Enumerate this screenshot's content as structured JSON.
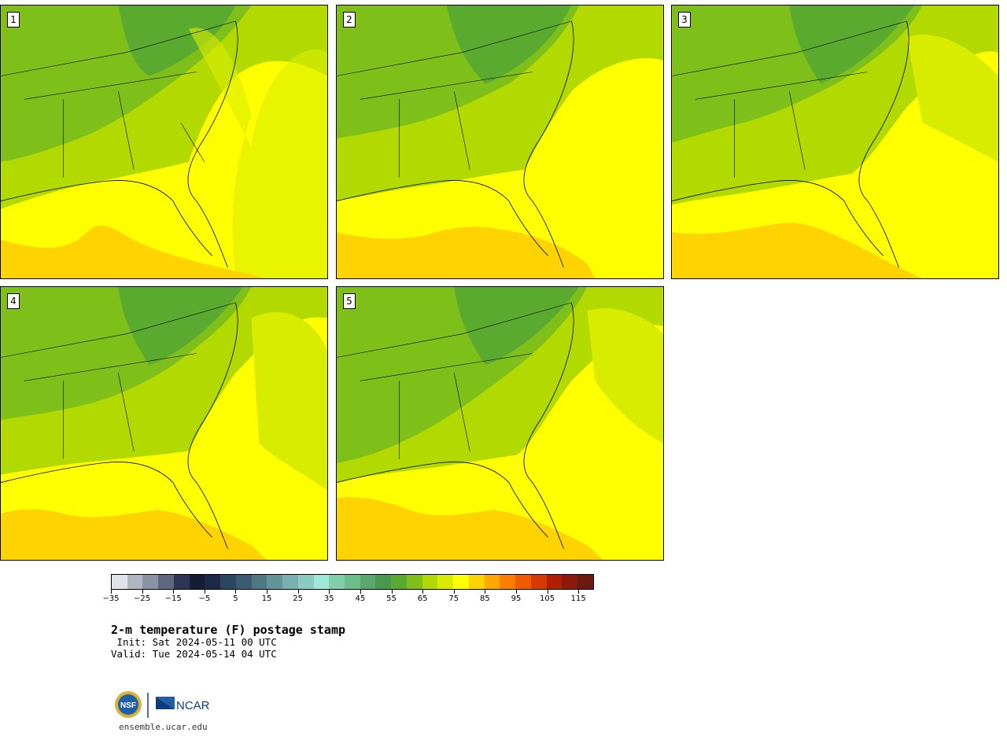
{
  "panels": [
    {
      "label": "1"
    },
    {
      "label": "2"
    },
    {
      "label": "3"
    },
    {
      "label": "4"
    },
    {
      "label": "5"
    }
  ],
  "colorbar": {
    "colors": [
      "#e0e4ea",
      "#b0b6c2",
      "#8a92a3",
      "#5e6780",
      "#2e3656",
      "#141c36",
      "#1c2a48",
      "#2c4560",
      "#3d5a70",
      "#4f7882",
      "#63949a",
      "#78b0b0",
      "#8ccbc2",
      "#9ee8d8",
      "#7fd0a8",
      "#6cbc8c",
      "#5aa86e",
      "#489a4e",
      "#5aaa30",
      "#7fbf1a",
      "#b2d900",
      "#d8ec00",
      "#ffff00",
      "#ffd300",
      "#ffa800",
      "#ff7d00",
      "#f05a00",
      "#d63a00",
      "#b02000",
      "#8c1a0a",
      "#6a1a10"
    ],
    "tick_labels": [
      "−35",
      "−25",
      "−15",
      "−5",
      "5",
      "15",
      "25",
      "35",
      "45",
      "55",
      "65",
      "75",
      "85",
      "95",
      "105",
      "115"
    ]
  },
  "title": "2-m temperature (F) postage stamp",
  "init": " Init: Sat 2024-05-11 00 UTC",
  "valid": "Valid: Tue 2024-05-14 04 UTC",
  "logo": {
    "nsf_text": "NSF",
    "ncar_text": "NCAR"
  },
  "site": "ensemble.ucar.edu"
}
